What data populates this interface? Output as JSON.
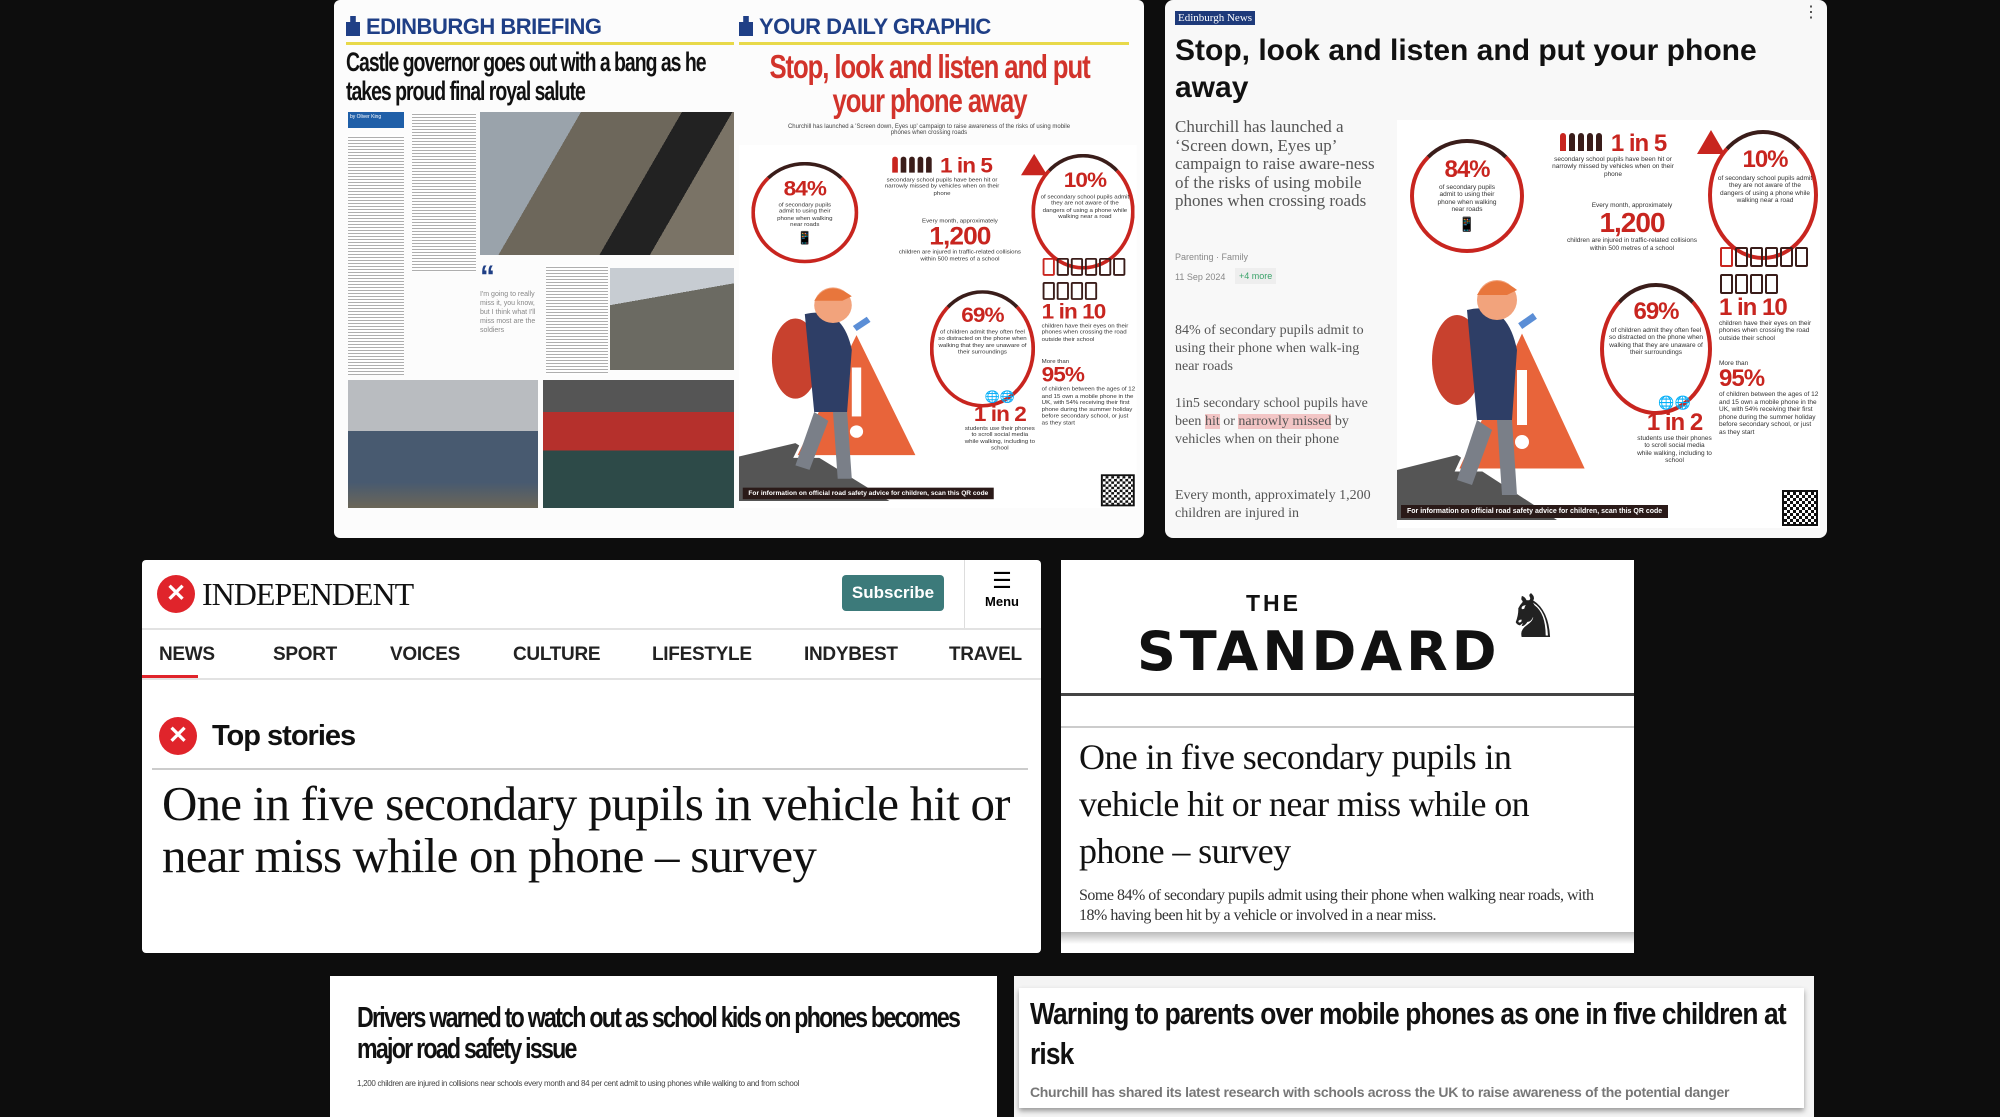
{
  "spread": {
    "left_section": "EDINBURGH BRIEFING",
    "left_headline": "Castle governor goes out with a bang as he takes proud final royal salute",
    "byline": "by Oliver King",
    "quote": "I'm going to really miss it, you know, but I think what I'll miss most are the soldiers",
    "right_section": "YOUR DAILY GRAPHIC",
    "right_headline": "Stop, look and listen and put your phone away",
    "right_intro": "Churchill has launched a 'Screen down, Eyes up' campaign to raise awareness of the risks of using mobile phones when crossing roads"
  },
  "infographic": {
    "s84": {
      "value": "84%",
      "text": "of secondary pupils admit to using their phone when walking near roads"
    },
    "s1in5": {
      "value": "1 in 5",
      "text": "secondary school pupils have been hit or narrowly missed by vehicles when on their phone"
    },
    "s10": {
      "value": "10%",
      "text": "of secondary school pupils admit they are not aware of the dangers of using a phone while walking near a road"
    },
    "s1200": {
      "pre": "Every month, approximately",
      "value": "1,200",
      "text": "children are injured in traffic-related collisions within 500 metres of a school"
    },
    "s1in10": {
      "value": "1 in 10",
      "text": "children have their eyes on their phones when crossing the road outside their school"
    },
    "s69": {
      "value": "69%",
      "text": "of children admit they often feel so distracted on the phone when walking that they are unaware of their surroundings"
    },
    "s95": {
      "pre": "More than",
      "value": "95%",
      "text": "of children between the ages of 12 and 15 own a mobile phone in the UK, with 54% receiving their first phone during the summer holiday before secondary school, or just as they start"
    },
    "s1in2": {
      "value": "1 in 2",
      "text": "students use their phones to scroll social media while walking, including to school"
    },
    "footer": "For information on official road safety advice for children, scan this QR code",
    "accent": "#c8251f"
  },
  "card": {
    "source": "Edinburgh News",
    "title": "Stop, look and listen and put your phone away",
    "lead": "Churchill has launched a ‘Screen down, Eyes up’ campaign to raise aware-ness of the risks of using mobile phones when crossing roads",
    "tags": "Parenting · Family",
    "date": "11 Sep 2024",
    "more": "+4 more",
    "p1": "84% of secondary pupils admit to using their phone when walk-ing near roads",
    "p2_a": "1in5 secondary school pupils have been ",
    "p2_hit": "hit",
    "p2_or": " or ",
    "p2_narrowly": "narrowly missed",
    "p2_b": " by vehicles when on their phone",
    "p3": "Every month, approximately 1,200 children are injured in"
  },
  "independent": {
    "logo": "INDEPENDENT",
    "subscribe": "Subscribe",
    "menu": "Menu",
    "nav": [
      "NEWS",
      "SPORT",
      "VOICES",
      "CULTURE",
      "LIFESTYLE",
      "INDYBEST",
      "TRAVEL"
    ],
    "section": "Top stories",
    "headline": "One in five secondary pupils in vehicle hit or near miss while on phone – survey",
    "brand_color": "#e0242b",
    "button_color": "#3c7a7a"
  },
  "standard": {
    "the": "THE",
    "name": "STANDARD",
    "headline": "One in five secondary pupils in vehicle hit or near miss while on phone – survey",
    "standfirst": "Some 84% of secondary pupils admit using their phone when walking near roads, with 18% having been hit by a vehicle or involved in a near miss."
  },
  "bottom_left": {
    "headline": "Drivers warned to watch out as school kids on phones becomes major road safety issue",
    "standfirst": "1,200 children are injured in collisions near schools every month and 84 per cent admit to using phones while walking to and from school"
  },
  "bottom_right": {
    "headline": "Warning to parents over mobile phones as one in five children at risk",
    "standfirst": "Churchill has shared its latest research with schools across the UK to raise awareness of the potential danger"
  }
}
